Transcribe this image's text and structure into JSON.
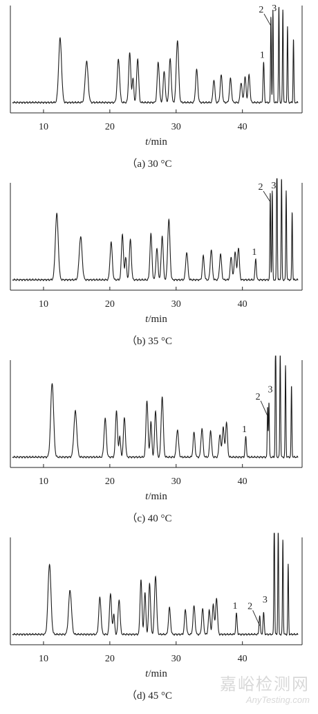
{
  "figure": {
    "xlabel_var": "t",
    "xlabel_unit": "/min",
    "watermark_cn": "嘉峪检测网",
    "watermark_en": "AnyTesting.com"
  },
  "chart_data": [
    {
      "type": "line",
      "caption": "（a) 30 °C",
      "xlim": [
        5,
        49
      ],
      "xticks": [
        10,
        20,
        30,
        40
      ],
      "grid": false,
      "peaks": [
        {
          "t": 12.5,
          "h": 0.7,
          "w": 0.22
        },
        {
          "t": 16.5,
          "h": 0.45,
          "w": 0.22
        },
        {
          "t": 21.3,
          "h": 0.47,
          "w": 0.18
        },
        {
          "t": 23.0,
          "h": 0.54,
          "w": 0.16
        },
        {
          "t": 23.5,
          "h": 0.26,
          "w": 0.12
        },
        {
          "t": 24.2,
          "h": 0.48,
          "w": 0.15
        },
        {
          "t": 27.3,
          "h": 0.44,
          "w": 0.16
        },
        {
          "t": 28.2,
          "h": 0.34,
          "w": 0.15
        },
        {
          "t": 29.1,
          "h": 0.48,
          "w": 0.16
        },
        {
          "t": 30.2,
          "h": 0.68,
          "w": 0.18
        },
        {
          "t": 33.1,
          "h": 0.36,
          "w": 0.16
        },
        {
          "t": 35.7,
          "h": 0.25,
          "w": 0.14
        },
        {
          "t": 36.8,
          "h": 0.3,
          "w": 0.15
        },
        {
          "t": 38.2,
          "h": 0.26,
          "w": 0.15
        },
        {
          "t": 39.8,
          "h": 0.22,
          "w": 0.14
        },
        {
          "t": 40.4,
          "h": 0.28,
          "w": 0.14
        },
        {
          "t": 41.0,
          "h": 0.3,
          "w": 0.14
        },
        {
          "t": 43.2,
          "h": 0.44,
          "w": 0.09
        },
        {
          "t": 44.3,
          "h": 0.95,
          "w": 0.06
        },
        {
          "t": 44.6,
          "h": 1.0,
          "w": 0.06
        },
        {
          "t": 45.5,
          "h": 1.05,
          "w": 0.06
        },
        {
          "t": 46.1,
          "h": 1.02,
          "w": 0.06
        },
        {
          "t": 46.8,
          "h": 0.83,
          "w": 0.06
        },
        {
          "t": 47.7,
          "h": 0.7,
          "w": 0.06
        }
      ],
      "annotations": [
        {
          "text": "1",
          "t": 43.2
        },
        {
          "text": "2",
          "t": 44.3
        },
        {
          "text": "3",
          "t": 44.6
        }
      ]
    },
    {
      "type": "line",
      "caption": "（b) 35 °C",
      "xlim": [
        5,
        49
      ],
      "xticks": [
        10,
        20,
        30,
        40
      ],
      "grid": false,
      "peaks": [
        {
          "t": 12.0,
          "h": 0.72,
          "w": 0.22
        },
        {
          "t": 15.6,
          "h": 0.47,
          "w": 0.22
        },
        {
          "t": 20.2,
          "h": 0.41,
          "w": 0.17
        },
        {
          "t": 21.9,
          "h": 0.5,
          "w": 0.15
        },
        {
          "t": 22.4,
          "h": 0.25,
          "w": 0.12
        },
        {
          "t": 23.1,
          "h": 0.44,
          "w": 0.15
        },
        {
          "t": 26.2,
          "h": 0.5,
          "w": 0.15
        },
        {
          "t": 27.1,
          "h": 0.34,
          "w": 0.15
        },
        {
          "t": 27.9,
          "h": 0.48,
          "w": 0.15
        },
        {
          "t": 28.9,
          "h": 0.66,
          "w": 0.17
        },
        {
          "t": 31.6,
          "h": 0.3,
          "w": 0.16
        },
        {
          "t": 34.1,
          "h": 0.26,
          "w": 0.14
        },
        {
          "t": 35.3,
          "h": 0.33,
          "w": 0.15
        },
        {
          "t": 36.7,
          "h": 0.28,
          "w": 0.15
        },
        {
          "t": 38.3,
          "h": 0.25,
          "w": 0.14
        },
        {
          "t": 38.9,
          "h": 0.31,
          "w": 0.14
        },
        {
          "t": 39.4,
          "h": 0.35,
          "w": 0.14
        },
        {
          "t": 42.0,
          "h": 0.23,
          "w": 0.1
        },
        {
          "t": 44.2,
          "h": 0.95,
          "w": 0.06
        },
        {
          "t": 44.5,
          "h": 0.98,
          "w": 0.06
        },
        {
          "t": 45.2,
          "h": 1.4,
          "w": 0.06
        },
        {
          "t": 45.9,
          "h": 1.11,
          "w": 0.06
        },
        {
          "t": 46.6,
          "h": 0.98,
          "w": 0.06
        },
        {
          "t": 47.5,
          "h": 0.75,
          "w": 0.06
        }
      ],
      "annotations": [
        {
          "text": "1",
          "t": 42.0
        },
        {
          "text": "2",
          "t": 44.2
        },
        {
          "text": "3",
          "t": 44.5
        }
      ]
    },
    {
      "type": "line",
      "caption": "（c) 40 °C",
      "xlim": [
        5,
        49
      ],
      "xticks": [
        10,
        20,
        30,
        40
      ],
      "grid": false,
      "peaks": [
        {
          "t": 11.3,
          "h": 0.81,
          "w": 0.22
        },
        {
          "t": 14.8,
          "h": 0.5,
          "w": 0.22
        },
        {
          "t": 19.3,
          "h": 0.42,
          "w": 0.17
        },
        {
          "t": 21.0,
          "h": 0.51,
          "w": 0.15
        },
        {
          "t": 21.5,
          "h": 0.23,
          "w": 0.12
        },
        {
          "t": 22.2,
          "h": 0.43,
          "w": 0.15
        },
        {
          "t": 25.6,
          "h": 0.62,
          "w": 0.15
        },
        {
          "t": 26.2,
          "h": 0.38,
          "w": 0.13
        },
        {
          "t": 26.9,
          "h": 0.51,
          "w": 0.14
        },
        {
          "t": 27.9,
          "h": 0.66,
          "w": 0.16
        },
        {
          "t": 30.2,
          "h": 0.3,
          "w": 0.16
        },
        {
          "t": 32.7,
          "h": 0.27,
          "w": 0.14
        },
        {
          "t": 33.9,
          "h": 0.31,
          "w": 0.15
        },
        {
          "t": 35.2,
          "h": 0.29,
          "w": 0.14
        },
        {
          "t": 36.6,
          "h": 0.25,
          "w": 0.14
        },
        {
          "t": 37.1,
          "h": 0.33,
          "w": 0.14
        },
        {
          "t": 37.6,
          "h": 0.38,
          "w": 0.14
        },
        {
          "t": 40.5,
          "h": 0.22,
          "w": 0.1
        },
        {
          "t": 43.8,
          "h": 0.55,
          "w": 0.06
        },
        {
          "t": 44.0,
          "h": 0.6,
          "w": 0.06
        },
        {
          "t": 45.0,
          "h": 1.45,
          "w": 0.06
        },
        {
          "t": 45.7,
          "h": 1.18,
          "w": 0.06
        },
        {
          "t": 46.5,
          "h": 1.0,
          "w": 0.06
        },
        {
          "t": 47.4,
          "h": 0.78,
          "w": 0.06
        }
      ],
      "annotations": [
        {
          "text": "1",
          "t": 40.5
        },
        {
          "text": "2",
          "t": 43.8
        },
        {
          "text": "3",
          "t": 44.0
        }
      ]
    },
    {
      "type": "line",
      "caption": "（d) 45 °C",
      "xlim": [
        5,
        49
      ],
      "xticks": [
        10,
        20,
        30,
        40
      ],
      "grid": false,
      "peaks": [
        {
          "t": 10.9,
          "h": 0.77,
          "w": 0.22
        },
        {
          "t": 14.0,
          "h": 0.48,
          "w": 0.22
        },
        {
          "t": 18.5,
          "h": 0.4,
          "w": 0.17
        },
        {
          "t": 20.1,
          "h": 0.45,
          "w": 0.15
        },
        {
          "t": 20.6,
          "h": 0.22,
          "w": 0.12
        },
        {
          "t": 21.4,
          "h": 0.38,
          "w": 0.15
        },
        {
          "t": 24.7,
          "h": 0.6,
          "w": 0.14
        },
        {
          "t": 25.3,
          "h": 0.45,
          "w": 0.13
        },
        {
          "t": 26.0,
          "h": 0.56,
          "w": 0.14
        },
        {
          "t": 26.9,
          "h": 0.64,
          "w": 0.16
        },
        {
          "t": 29.0,
          "h": 0.29,
          "w": 0.15
        },
        {
          "t": 31.4,
          "h": 0.27,
          "w": 0.14
        },
        {
          "t": 32.7,
          "h": 0.31,
          "w": 0.15
        },
        {
          "t": 34.0,
          "h": 0.28,
          "w": 0.14
        },
        {
          "t": 35.0,
          "h": 0.26,
          "w": 0.14
        },
        {
          "t": 35.6,
          "h": 0.33,
          "w": 0.14
        },
        {
          "t": 36.1,
          "h": 0.4,
          "w": 0.14
        },
        {
          "t": 39.1,
          "h": 0.23,
          "w": 0.1
        },
        {
          "t": 42.6,
          "h": 0.21,
          "w": 0.09
        },
        {
          "t": 43.2,
          "h": 0.24,
          "w": 0.09
        },
        {
          "t": 44.8,
          "h": 1.36,
          "w": 0.06
        },
        {
          "t": 45.4,
          "h": 1.17,
          "w": 0.06
        },
        {
          "t": 46.1,
          "h": 1.04,
          "w": 0.06
        },
        {
          "t": 46.9,
          "h": 0.77,
          "w": 0.06
        }
      ],
      "annotations": [
        {
          "text": "1",
          "t": 39.1
        },
        {
          "text": "2",
          "t": 42.6
        },
        {
          "text": "3",
          "t": 43.2
        }
      ]
    }
  ]
}
